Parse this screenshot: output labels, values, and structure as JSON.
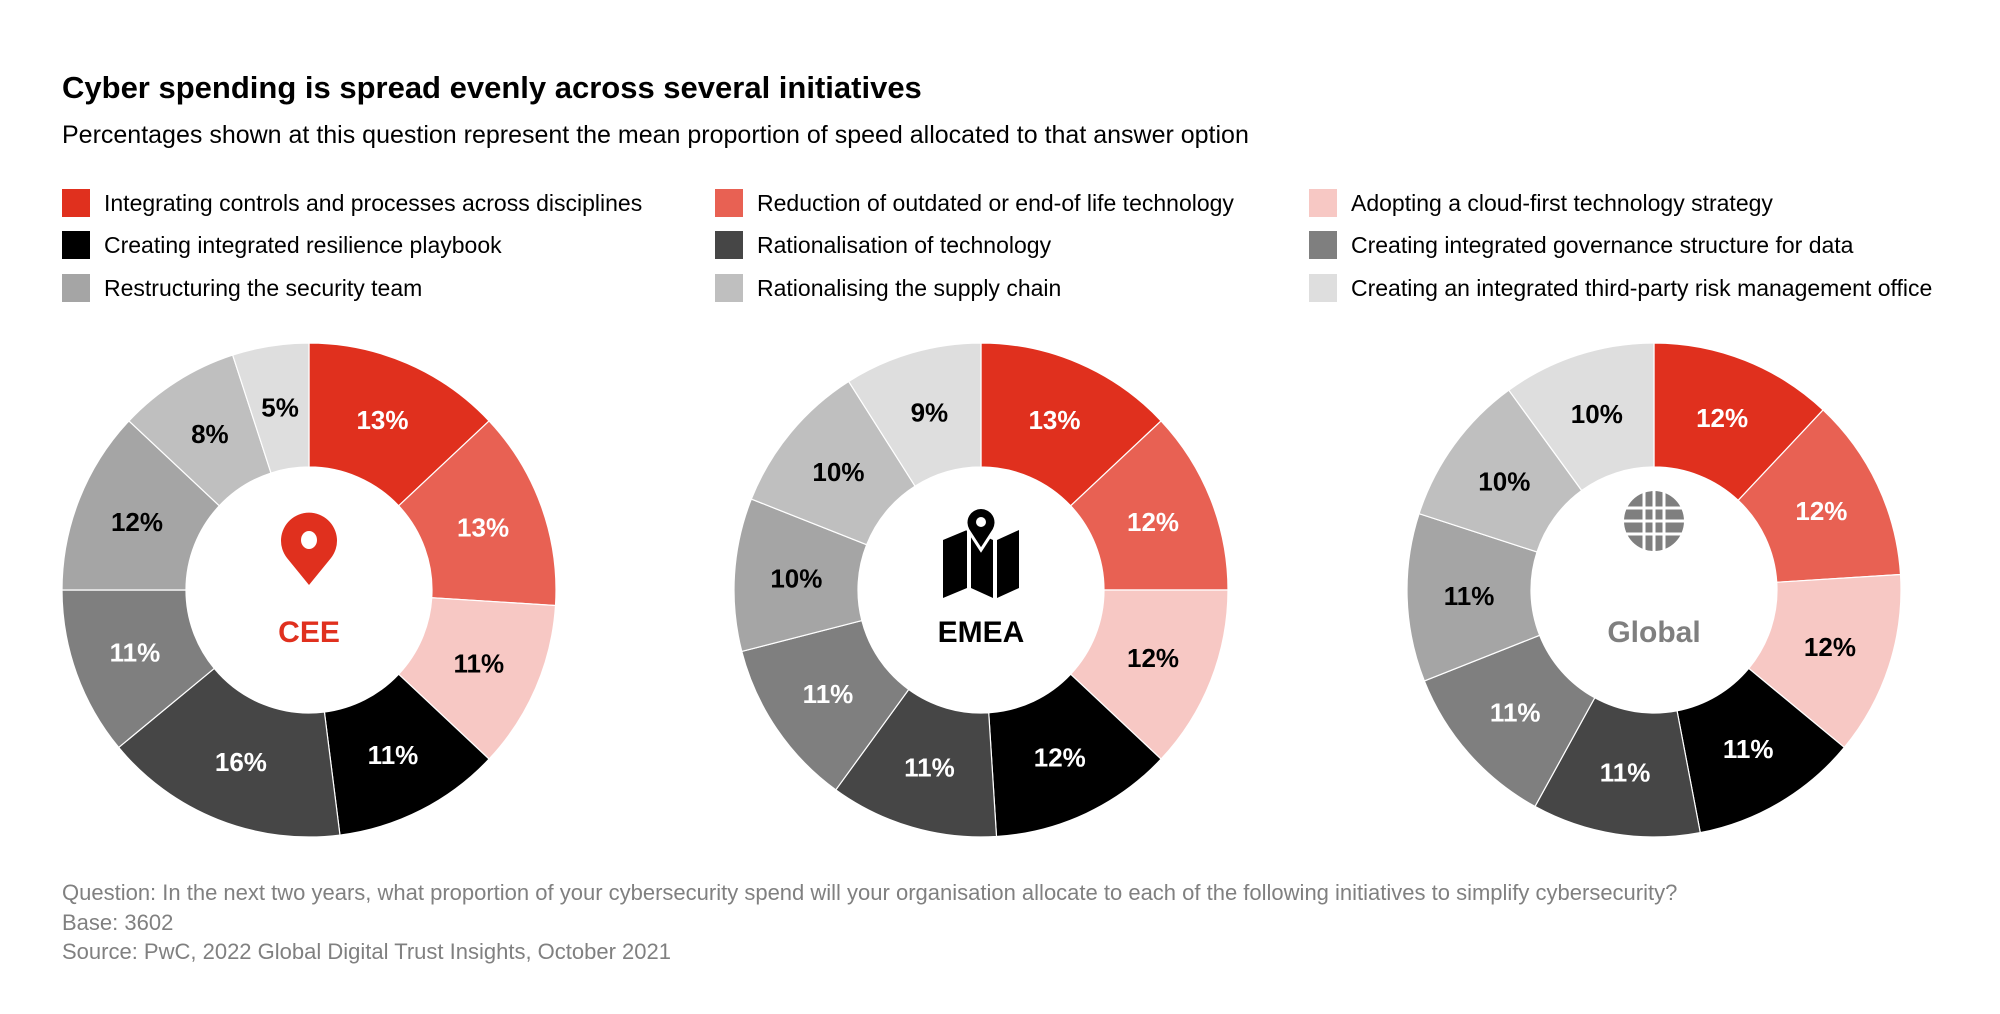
{
  "title": "Cyber spending is spread evenly across several initiatives",
  "subtitle": "Percentages shown at this question represent the mean proportion of speed allocated to that answer option",
  "chart_data": {
    "type": "pie",
    "categories": [
      "Integrating controls and processes across disciplines",
      "Reduction of outdated or end-of life technology",
      "Adopting a cloud-first technology strategy",
      "Creating integrated resilience playbook",
      "Rationalisation of technology",
      "Creating integrated governance structure for data",
      "Restructuring the security team",
      "Rationalising the supply chain",
      "Creating an integrated third-party risk management office"
    ],
    "colors": [
      "#E0301E",
      "#E86153",
      "#F7C8C4",
      "#000000",
      "#464646",
      "#7F7F7F",
      "#A5A5A5",
      "#BFBFBF",
      "#DEDEDE"
    ],
    "label_colors": [
      "#FFFFFF",
      "#FFFFFF",
      "#000000",
      "#FFFFFF",
      "#FFFFFF",
      "#FFFFFF",
      "#000000",
      "#000000",
      "#000000"
    ],
    "series": [
      {
        "name": "CEE",
        "icon": "map-pin-icon",
        "name_color": "#E0301E",
        "values": [
          13,
          13,
          11,
          11,
          16,
          11,
          12,
          8,
          5
        ]
      },
      {
        "name": "EMEA",
        "icon": "map-icon",
        "name_color": "#000000",
        "values": [
          13,
          12,
          12,
          12,
          11,
          11,
          10,
          10,
          9
        ]
      },
      {
        "name": "Global",
        "icon": "globe-icon",
        "name_color": "#7F7F7F",
        "values": [
          12,
          12,
          12,
          11,
          11,
          11,
          11,
          10,
          10
        ]
      }
    ],
    "donut": true,
    "unit": "%"
  },
  "legend_order": [
    0,
    1,
    2,
    3,
    4,
    5,
    6,
    7,
    8
  ],
  "footnotes": {
    "question": "Question: In the next two years, what proportion of your cybersecurity spend will your organisation allocate to each of the following initiatives to simplify cybersecurity?",
    "base": "Base: 3602",
    "source": "Source: PwC, 2022 Global Digital Trust Insights, October 2021"
  }
}
